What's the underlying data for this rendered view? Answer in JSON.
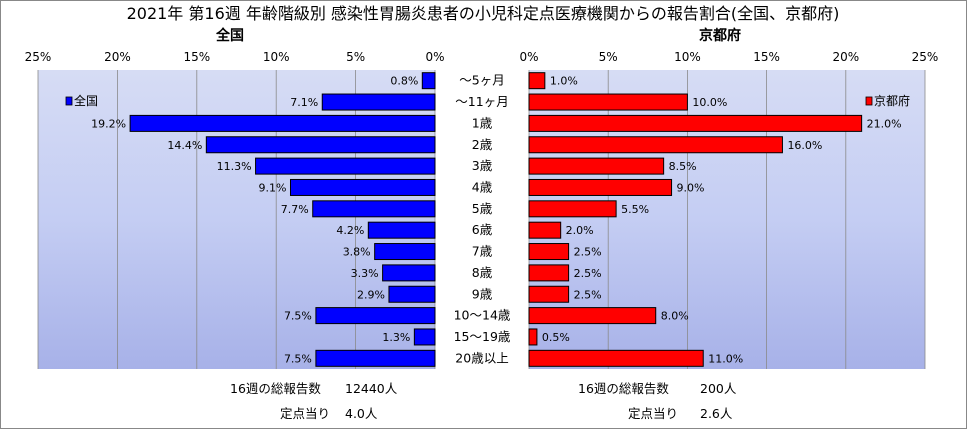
{
  "title": "2021年 第16週 年齢階級別 感染性胃腸炎患者の小児科定点医療機関からの報告割合(全国、京都府)",
  "chart_data": [
    {
      "type": "bar",
      "orientation": "horizontal",
      "side_title": "全国",
      "legend": "全国",
      "xlim": [
        0,
        25
      ],
      "x_direction": "reversed",
      "ticks": [
        "0%",
        "5%",
        "10%",
        "15%",
        "20%",
        "25%"
      ],
      "categories": [
        "～5ヶ月",
        "～11ヶ月",
        "1歳",
        "2歳",
        "3歳",
        "4歳",
        "5歳",
        "6歳",
        "7歳",
        "8歳",
        "9歳",
        "10～14歳",
        "15～19歳",
        "20歳以上"
      ],
      "values": [
        0.8,
        7.1,
        19.2,
        14.4,
        11.3,
        9.1,
        7.7,
        4.2,
        3.8,
        3.3,
        2.9,
        7.5,
        1.3,
        7.5
      ],
      "labels": [
        "0.8%",
        "7.1%",
        "19.2%",
        "14.4%",
        "11.3%",
        "9.1%",
        "7.7%",
        "4.2%",
        "3.8%",
        "3.3%",
        "2.9%",
        "7.5%",
        "1.3%",
        "7.5%"
      ],
      "color": "#0000ff",
      "grid": true
    },
    {
      "type": "bar",
      "orientation": "horizontal",
      "side_title": "京都府",
      "legend": "京都府",
      "xlim": [
        0,
        25
      ],
      "ticks": [
        "0%",
        "5%",
        "10%",
        "15%",
        "20%",
        "25%"
      ],
      "categories": [
        "～5ヶ月",
        "～11ヶ月",
        "1歳",
        "2歳",
        "3歳",
        "4歳",
        "5歳",
        "6歳",
        "7歳",
        "8歳",
        "9歳",
        "10～14歳",
        "15～19歳",
        "20歳以上"
      ],
      "values": [
        1.0,
        10.0,
        21.0,
        16.0,
        8.5,
        9.0,
        5.5,
        2.0,
        2.5,
        2.5,
        2.5,
        8.0,
        0.5,
        11.0
      ],
      "labels": [
        "1.0%",
        "10.0%",
        "21.0%",
        "16.0%",
        "8.5%",
        "9.0%",
        "5.5%",
        "2.0%",
        "2.5%",
        "2.5%",
        "2.5%",
        "8.0%",
        "0.5%",
        "11.0%"
      ],
      "color": "#ff0000",
      "grid": true
    }
  ],
  "footer": {
    "national_total_label": "16週の総報告数",
    "national_total_value": "12440人",
    "national_per_label": "定点当り",
    "national_per_value": "4.0人",
    "kyoto_total_label": "16週の総報告数",
    "kyoto_total_value": "200人",
    "kyoto_per_label": "定点当り",
    "kyoto_per_value": "2.6人"
  }
}
